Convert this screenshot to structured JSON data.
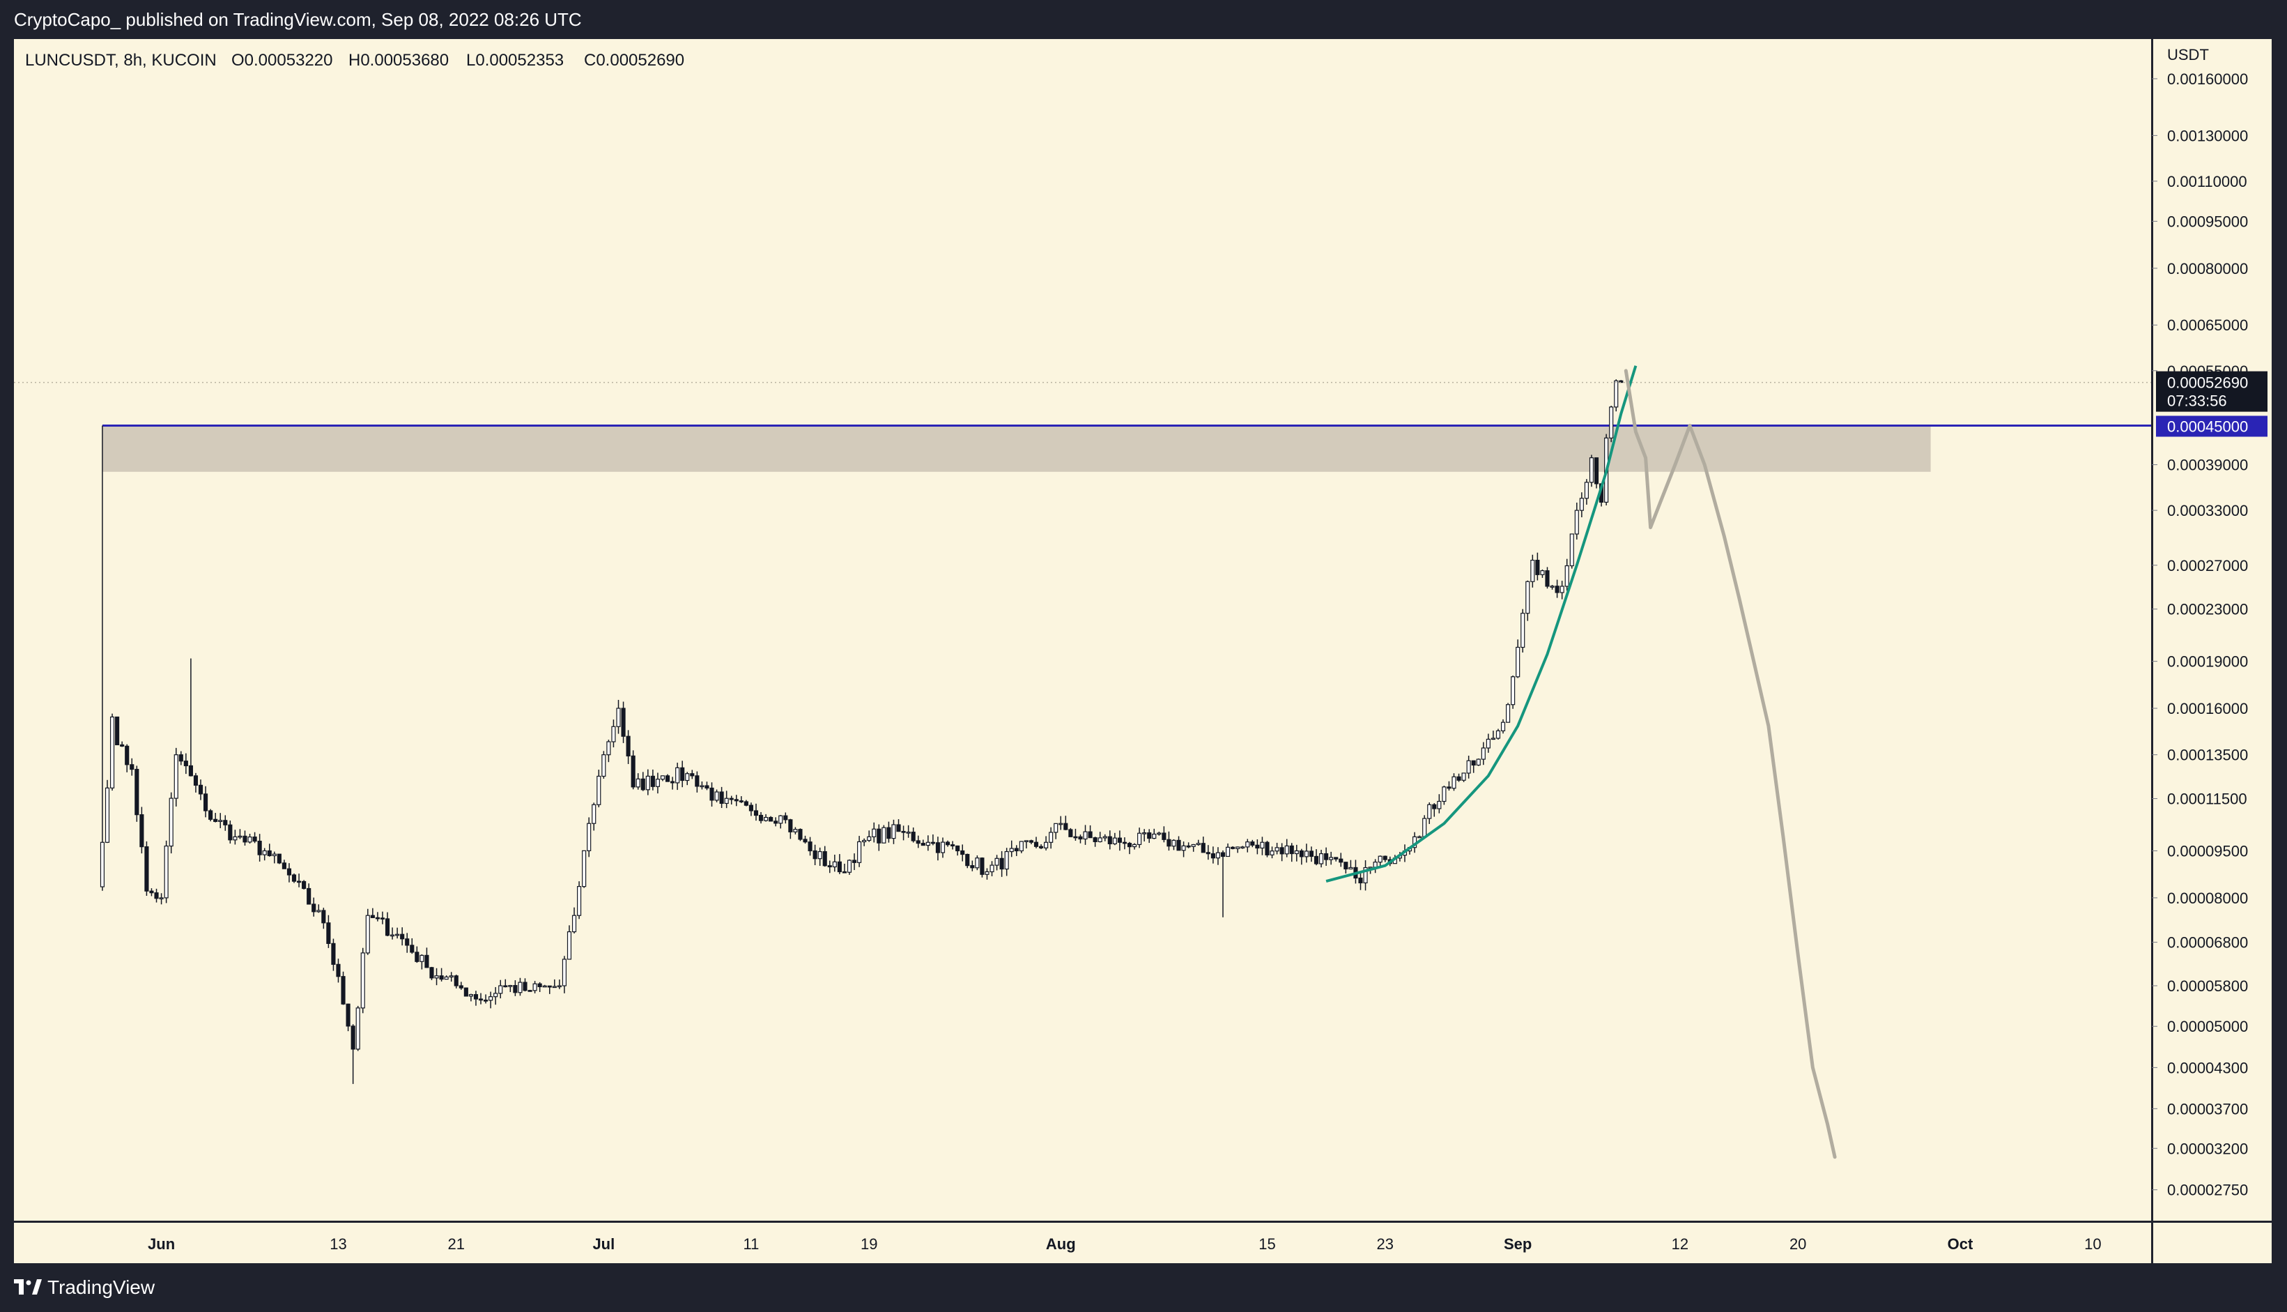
{
  "header": {
    "publish_line": "CryptoCapo_ published on TradingView.com, Sep 08, 2022 08:26 UTC"
  },
  "footer": {
    "brand": "TradingView"
  },
  "colors": {
    "background": "#fbf5df",
    "frame": "#1f222d",
    "candle": "#131722",
    "resistance_line": "#2a24b5",
    "zone": "#d3cbbb",
    "curve": "#15967e",
    "projection": "#b1ac9f"
  },
  "chart_data": {
    "type": "candlestick",
    "symbol_line": {
      "symbol": "LUNCUSDT, 8h, KUCOIN",
      "open": "O0.00053220",
      "high": "H0.00053680",
      "low": "L0.00052353",
      "close": "C0.00052690"
    },
    "currency_label": "USDT",
    "scale": "log",
    "y_range": [
      2.45e-05,
      0.00185
    ],
    "x_range": [
      "2022-05-22",
      "2022-10-14"
    ],
    "y_ticks": [
      "0.00160000",
      "0.00130000",
      "0.00110000",
      "0.00095000",
      "0.00080000",
      "0.00065000",
      "0.00055000",
      "0.00039000",
      "0.00033000",
      "0.00027000",
      "0.00023000",
      "0.00019000",
      "0.00016000",
      "0.00013500",
      "0.00011500",
      "0.00009500",
      "0.00008000",
      "0.00006800",
      "0.00005800",
      "0.00005000",
      "0.00004300",
      "0.00003700",
      "0.00003200",
      "0.00002750"
    ],
    "x_ticks": [
      {
        "label": "Jun",
        "date": "2022-06-01",
        "bold": true
      },
      {
        "label": "13",
        "date": "2022-06-13",
        "bold": false
      },
      {
        "label": "21",
        "date": "2022-06-21",
        "bold": false
      },
      {
        "label": "Jul",
        "date": "2022-07-01",
        "bold": true
      },
      {
        "label": "11",
        "date": "2022-07-11",
        "bold": false
      },
      {
        "label": "19",
        "date": "2022-07-19",
        "bold": false
      },
      {
        "label": "Aug",
        "date": "2022-08-01",
        "bold": true
      },
      {
        "label": "15",
        "date": "2022-08-15",
        "bold": false
      },
      {
        "label": "23",
        "date": "2022-08-23",
        "bold": false
      },
      {
        "label": "Sep",
        "date": "2022-09-01",
        "bold": true
      },
      {
        "label": "12",
        "date": "2022-09-12",
        "bold": false
      },
      {
        "label": "20",
        "date": "2022-09-20",
        "bold": false
      },
      {
        "label": "Oct",
        "date": "2022-10-01",
        "bold": true
      },
      {
        "label": "10",
        "date": "2022-10-10",
        "bold": false
      }
    ],
    "last_price": {
      "value": 0.0005269,
      "label": "0.00052690",
      "countdown": "07:33:56"
    },
    "resistance": {
      "value": 0.00045,
      "label": "0.00045000",
      "start": "2022-05-28"
    },
    "zone": {
      "top": 0.00045,
      "bottom": 0.00038,
      "start": "2022-05-28",
      "end": "2022-09-29"
    },
    "close_anchors": [
      [
        "2022-05-28",
        9.8e-05
      ],
      [
        "2022-05-28 16:00",
        0.000155
      ],
      [
        "2022-05-29",
        0.00014
      ],
      [
        "2022-05-30",
        0.000128
      ],
      [
        "2022-05-31",
        8.2e-05
      ],
      [
        "2022-06-01",
        8e-05
      ],
      [
        "2022-06-02",
        0.000135
      ],
      [
        "2022-06-03",
        0.000125
      ],
      [
        "2022-06-04",
        0.00011
      ],
      [
        "2022-06-06",
        0.0001
      ],
      [
        "2022-06-08",
        9.5e-05
      ],
      [
        "2022-06-10",
        8.5e-05
      ],
      [
        "2022-06-12",
        7.3e-05
      ],
      [
        "2022-06-13",
        6e-05
      ],
      [
        "2022-06-14",
        4.6e-05
      ],
      [
        "2022-06-15",
        7.5e-05
      ],
      [
        "2022-06-17",
        7e-05
      ],
      [
        "2022-06-19",
        6.2e-05
      ],
      [
        "2022-06-21",
        5.8e-05
      ],
      [
        "2022-06-23",
        5.5e-05
      ],
      [
        "2022-06-24",
        5.8e-05
      ],
      [
        "2022-06-26",
        5.7e-05
      ],
      [
        "2022-06-28",
        5.8e-05
      ],
      [
        "2022-06-29",
        7.5e-05
      ],
      [
        "2022-06-30",
        0.000105
      ],
      [
        "2022-07-01",
        0.000135
      ],
      [
        "2022-07-02",
        0.00016
      ],
      [
        "2022-07-03",
        0.00012
      ],
      [
        "2022-07-05",
        0.000125
      ],
      [
        "2022-07-07",
        0.000125
      ],
      [
        "2022-07-09",
        0.000113
      ],
      [
        "2022-07-11",
        0.00011
      ],
      [
        "2022-07-13",
        0.000108
      ],
      [
        "2022-07-15",
        9.5e-05
      ],
      [
        "2022-07-17",
        8.8e-05
      ],
      [
        "2022-07-19",
        0.0001
      ],
      [
        "2022-07-21",
        0.000102
      ],
      [
        "2022-07-23",
        9.8e-05
      ],
      [
        "2022-07-25",
        9.5e-05
      ],
      [
        "2022-07-27",
        8.8e-05
      ],
      [
        "2022-07-29",
        9.5e-05
      ],
      [
        "2022-07-31",
        9.8e-05
      ],
      [
        "2022-08-01",
        0.000105
      ],
      [
        "2022-08-02",
        0.0001
      ],
      [
        "2022-08-05",
        9.8e-05
      ],
      [
        "2022-08-08",
        9.9e-05
      ],
      [
        "2022-08-11",
        9.4e-05
      ],
      [
        "2022-08-14",
        9.7e-05
      ],
      [
        "2022-08-17",
        9.5e-05
      ],
      [
        "2022-08-19",
        9.2e-05
      ],
      [
        "2022-08-21",
        8.6e-05
      ],
      [
        "2022-08-23",
        9.2e-05
      ],
      [
        "2022-08-25",
        0.0001
      ],
      [
        "2022-08-27",
        0.00012
      ],
      [
        "2022-08-29",
        0.00013
      ],
      [
        "2022-08-31",
        0.000152
      ],
      [
        "2022-09-01",
        0.0002
      ],
      [
        "2022-09-02",
        0.000275
      ],
      [
        "2022-09-03",
        0.00025
      ],
      [
        "2022-09-04",
        0.00025
      ],
      [
        "2022-09-05",
        0.00033
      ],
      [
        "2022-09-06",
        0.0004
      ],
      [
        "2022-09-06 16:00",
        0.00034
      ],
      [
        "2022-09-07",
        0.00043
      ],
      [
        "2022-09-07 16:00",
        0.00053
      ],
      [
        "2022-09-08",
        0.0005269
      ]
    ],
    "spike_wicks": [
      [
        "2022-05-28",
        0.00045
      ],
      [
        "2022-06-03",
        0.000192
      ],
      [
        "2022-06-14",
        4.05e-05
      ],
      [
        "2022-08-12",
        7.45e-05
      ],
      [
        "2022-07-02",
        0.000165
      ]
    ],
    "curve": [
      [
        "2022-08-19",
        8.5e-05
      ],
      [
        "2022-08-23",
        9e-05
      ],
      [
        "2022-08-27",
        0.000105
      ],
      [
        "2022-08-30",
        0.000125
      ],
      [
        "2022-09-01",
        0.00015
      ],
      [
        "2022-09-03",
        0.000195
      ],
      [
        "2022-09-05",
        0.00027
      ],
      [
        "2022-09-07",
        0.00038
      ],
      [
        "2022-09-08",
        0.00047
      ],
      [
        "2022-09-09",
        0.00056
      ]
    ],
    "projection": [
      [
        "2022-09-08 08:00",
        0.00055
      ],
      [
        "2022-09-09",
        0.00044
      ],
      [
        "2022-09-09 16:00",
        0.0004
      ],
      [
        "2022-09-10",
        0.00031
      ],
      [
        "2022-09-10 16:00",
        0.00034
      ],
      [
        "2022-09-11 16:00",
        0.00039
      ],
      [
        "2022-09-12 16:00",
        0.00045
      ],
      [
        "2022-09-13 16:00",
        0.00039
      ],
      [
        "2022-09-15",
        0.0003
      ],
      [
        "2022-09-16",
        0.00024
      ],
      [
        "2022-09-17",
        0.00019
      ],
      [
        "2022-09-18",
        0.00015
      ],
      [
        "2022-09-19",
        0.0001
      ],
      [
        "2022-09-20",
        6.5e-05
      ],
      [
        "2022-09-21",
        4.3e-05
      ],
      [
        "2022-09-22",
        3.5e-05
      ],
      [
        "2022-09-22 12:00",
        3.1e-05
      ]
    ]
  }
}
